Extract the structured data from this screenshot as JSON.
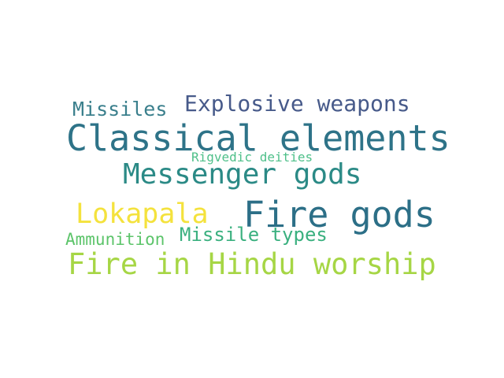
{
  "words": [
    {
      "text": "Missiles",
      "color": "#3a7f8c"
    },
    {
      "text": "Explosive weapons",
      "color": "#475a8a"
    },
    {
      "text": "Classical elements",
      "color": "#2e7388"
    },
    {
      "text": "Rigvedic deities",
      "color": "#4fc08a"
    },
    {
      "text": "Messenger gods",
      "color": "#2b8a86"
    },
    {
      "text": "Lokapala",
      "color": "#f4e23d"
    },
    {
      "text": "Fire gods",
      "color": "#2c6f87"
    },
    {
      "text": "Ammunition",
      "color": "#5cc46a"
    },
    {
      "text": "Missile types",
      "color": "#3ab07f"
    },
    {
      "text": "Fire in Hindu worship",
      "color": "#a6d645"
    }
  ]
}
